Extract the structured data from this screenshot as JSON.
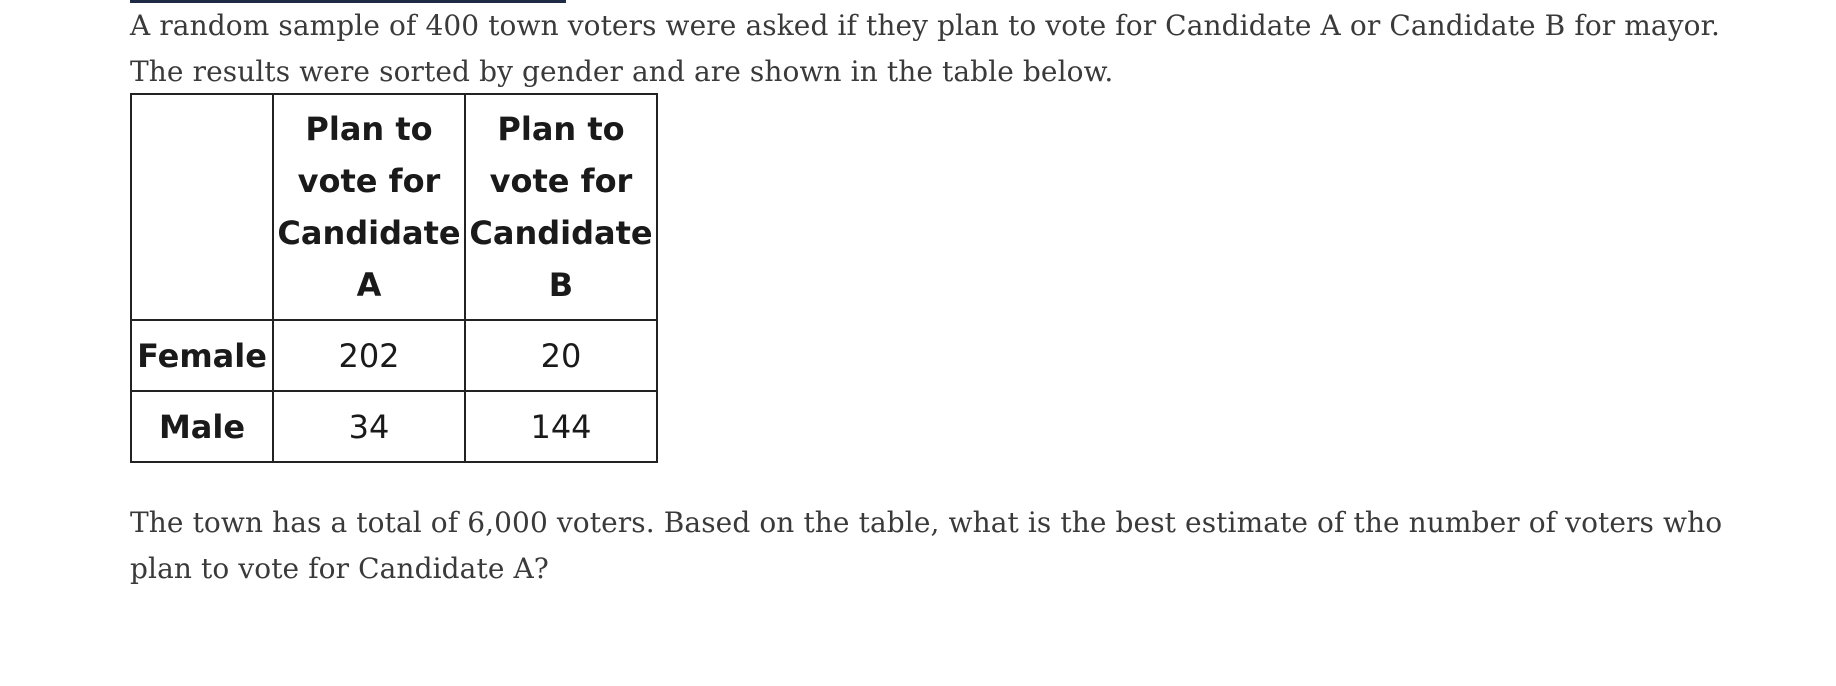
{
  "intro": {
    "line1": "A random sample of 400 town voters were asked if they plan to vote for Candidate A or Candidate B for mayor.",
    "line2": "The results were sorted by gender and are shown in the table below."
  },
  "table": {
    "columns": [
      [
        "Plan to",
        "vote for",
        "Candidate",
        "A"
      ],
      [
        "Plan to",
        "vote for",
        "Candidate",
        "B"
      ]
    ],
    "rows": [
      {
        "label": "Female",
        "values": [
          "202",
          "20"
        ]
      },
      {
        "label": "Male",
        "values": [
          "34",
          "144"
        ]
      }
    ]
  },
  "question": {
    "line1": "The town has a total of 6,000 voters. Based on the table, what is the best estimate of the number of voters who",
    "line2": "plan to vote for Candidate A?"
  }
}
